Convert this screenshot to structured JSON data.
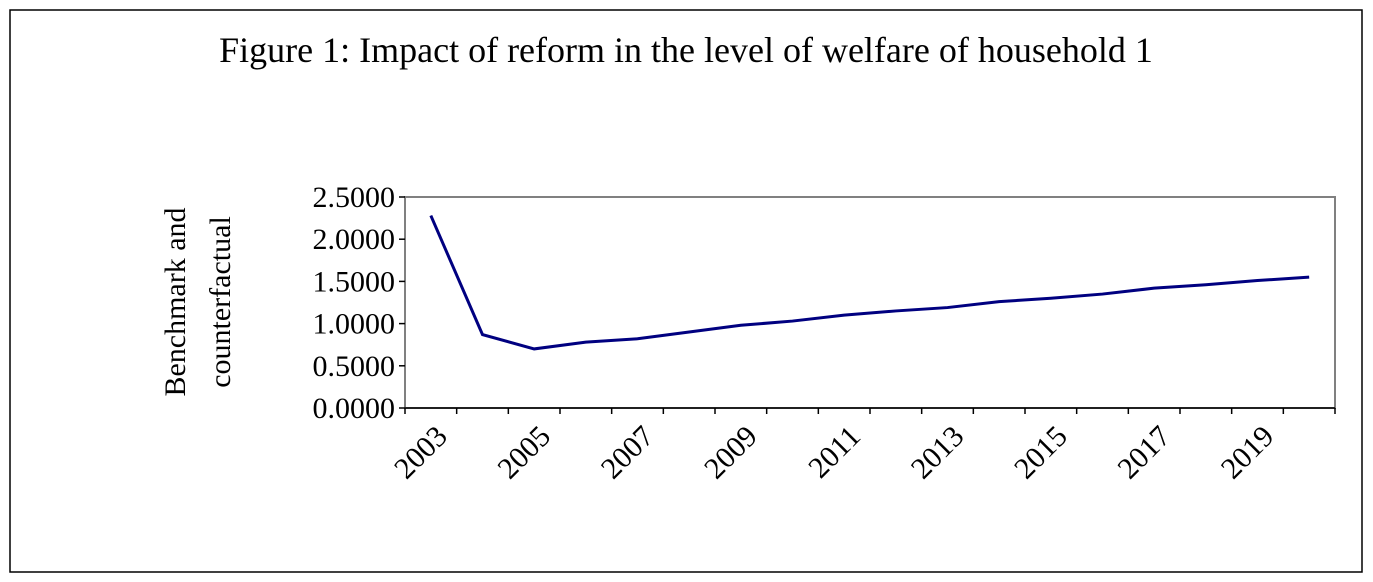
{
  "chart_data": {
    "type": "line",
    "title": "Figure 1: Impact of reform in the level of welfare of household 1",
    "y_label": [
      "Benchmark and",
      "counterfactual"
    ],
    "categories": [
      "2003",
      null,
      "2005",
      null,
      "2007",
      null,
      "2009",
      null,
      "2011",
      null,
      "2013",
      null,
      "2015",
      null,
      "2017",
      null,
      "2019",
      null
    ],
    "series": [
      {
        "color": "#000080",
        "values": [
          2.28,
          0.87,
          0.7,
          0.78,
          0.82,
          0.9,
          0.98,
          1.03,
          1.1,
          1.15,
          1.19,
          1.26,
          1.3,
          1.35,
          1.42,
          1.46,
          1.51,
          1.55
        ]
      }
    ],
    "ylim": [
      0,
      2.5
    ],
    "yticks": [
      {
        "value": 0,
        "label": "0.0000"
      },
      {
        "value": 0.5,
        "label": "0.5000"
      },
      {
        "value": 1,
        "label": "1.0000"
      },
      {
        "value": 1.5,
        "label": "1.5000"
      },
      {
        "value": 2,
        "label": "2.0000"
      },
      {
        "value": 2.5,
        "label": "2.5000"
      }
    ],
    "grid": false
  }
}
